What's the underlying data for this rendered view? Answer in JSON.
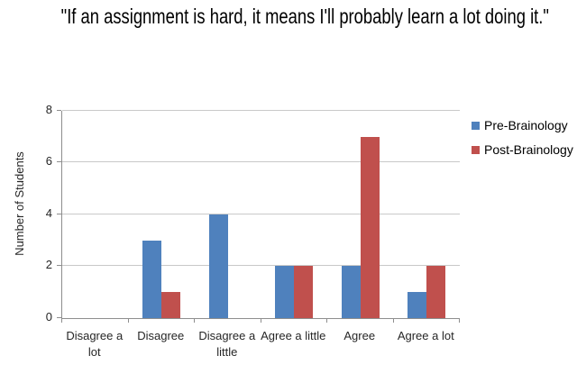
{
  "title": "\"If an assignment is hard, it means I'll probably learn a lot doing it.\"",
  "chart_data": {
    "type": "bar",
    "title": "\"If an assignment is hard, it means I'll probably learn a lot doing it.\"",
    "categories": [
      "Disagree a lot",
      "Disagree",
      "Disagree a little",
      "Agree a little",
      "Agree",
      "Agree a lot"
    ],
    "series": [
      {
        "name": "Pre-Brainology",
        "color": "#4F81BD",
        "values": [
          0,
          3,
          4,
          2,
          2,
          1
        ]
      },
      {
        "name": "Post-Brainology",
        "color": "#C0504D",
        "values": [
          0,
          1,
          0,
          2,
          7,
          2
        ]
      }
    ],
    "xlabel": "",
    "ylabel": "Number of Students",
    "ylim": [
      0,
      8
    ],
    "yticks": [
      0,
      2,
      4,
      6,
      8
    ],
    "grid": true,
    "legend_position": "right",
    "colors": {
      "axis": "#8e8e8e",
      "gridline": "#c9c9c9",
      "text": "#262626"
    }
  }
}
